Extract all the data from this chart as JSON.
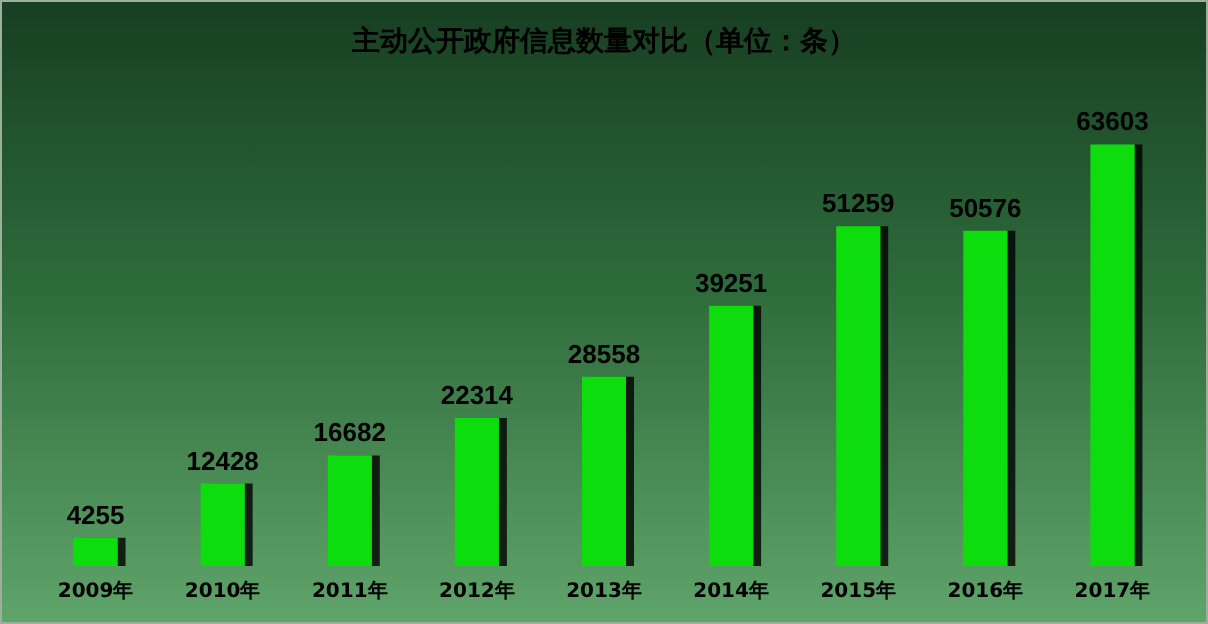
{
  "chart_data": {
    "type": "bar",
    "title": "主动公开政府信息数量对比（单位：条）",
    "categories": [
      "2009年",
      "2010年",
      "2011年",
      "2012年",
      "2013年",
      "2014年",
      "2015年",
      "2016年",
      "2017年"
    ],
    "values": [
      4255,
      12428,
      16682,
      22314,
      28558,
      39251,
      51259,
      50576,
      63603
    ],
    "color": "#11dd11",
    "data_labels": true
  }
}
